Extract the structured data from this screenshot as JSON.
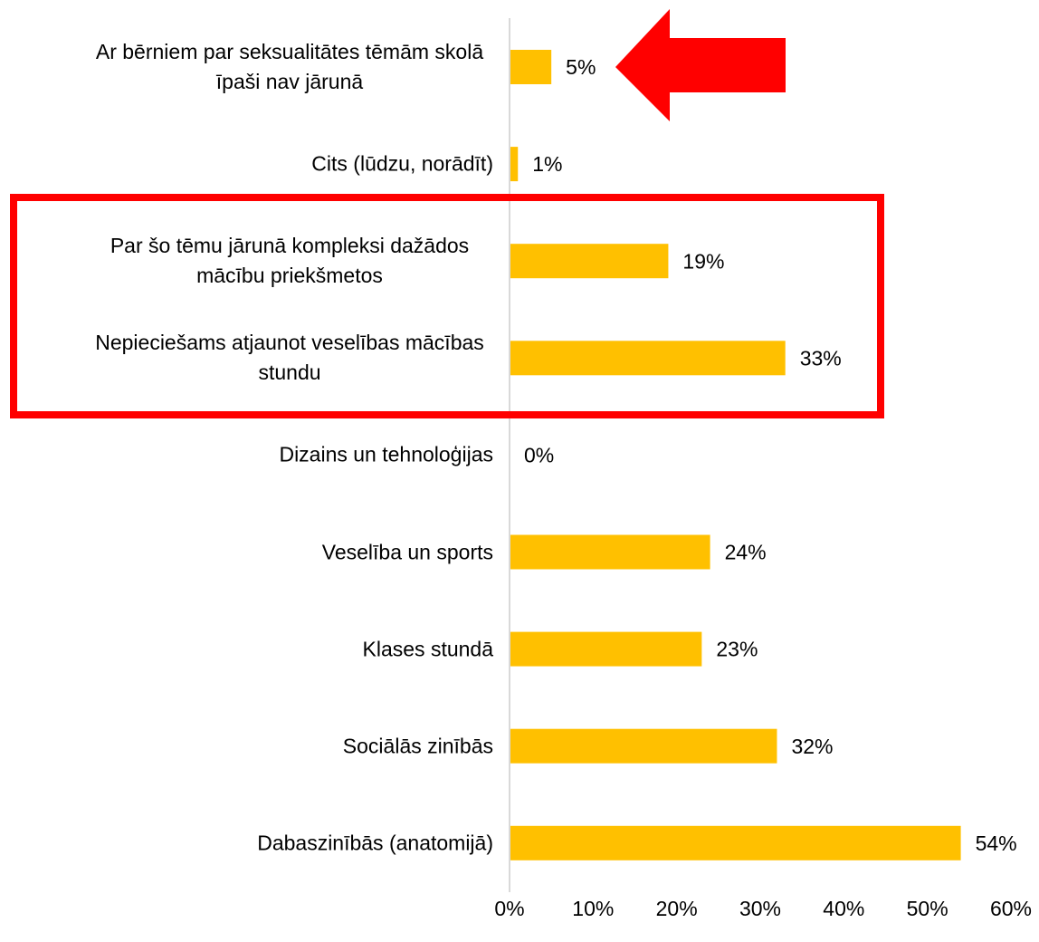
{
  "chart_data": {
    "type": "barh",
    "categories": [
      "Ar bērniem par seksualitātes tēmām skolā īpaši nav jārunā",
      "Cits (lūdzu, norādīt)",
      "Par šo tēmu jārunā kompleksi dažādos mācību priekšmetos",
      "Nepieciešams atjaunot veselības mācības stundu",
      "Dizains un tehnoloģijas",
      "Veselība un sports",
      "Klases stundā",
      "Sociālās zinībās",
      "Dabaszinībās (anatomijā)"
    ],
    "values": [
      5,
      1,
      19,
      33,
      0,
      24,
      23,
      32,
      54
    ],
    "value_labels": [
      "5%",
      "1%",
      "19%",
      "33%",
      "0%",
      "24%",
      "23%",
      "32%",
      "54%"
    ],
    "color": "#ffc000",
    "xlim": [
      0,
      60
    ],
    "xticks": [
      {
        "value": 0,
        "label": "0%"
      },
      {
        "value": 10,
        "label": "10%"
      },
      {
        "value": 20,
        "label": "20%"
      },
      {
        "value": 30,
        "label": "30%"
      },
      {
        "value": 40,
        "label": "40%"
      },
      {
        "value": 50,
        "label": "50%"
      },
      {
        "value": 60,
        "label": "60%"
      }
    ],
    "grid": false
  }
}
